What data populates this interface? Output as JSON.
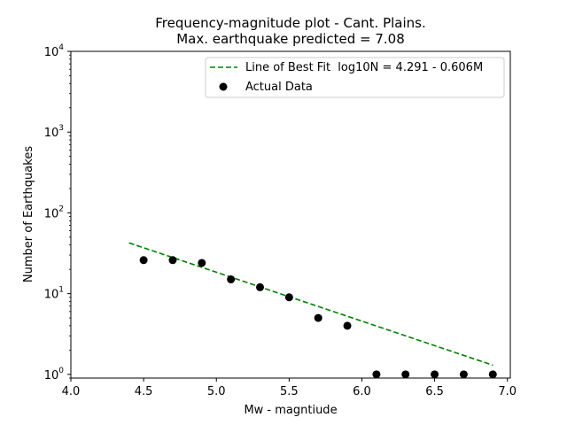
{
  "chart_data": {
    "type": "scatter",
    "title": "Frequency-magnitude plot - Cant. Plains.",
    "subtitle": "Max. earthquake predicted = 7.08",
    "xlabel": "Mw - magntiude",
    "ylabel": "Number of Earthquakes",
    "xlim": [
      4.0,
      7.02
    ],
    "ylim": [
      0.9,
      10000
    ],
    "yscale": "log",
    "x_ticks": [
      "4.0",
      "4.5",
      "5.0",
      "5.5",
      "6.0",
      "6.5",
      "7.0"
    ],
    "y_ticks": [
      {
        "base": "10",
        "exp": "0"
      },
      {
        "base": "10",
        "exp": "1"
      },
      {
        "base": "10",
        "exp": "2"
      },
      {
        "base": "10",
        "exp": "3"
      },
      {
        "base": "10",
        "exp": "4"
      }
    ],
    "grid": false,
    "legend_position": "top-right",
    "series": [
      {
        "name": "Line of Best Fit  log10N = 4.291 - 0.606M",
        "kind": "line",
        "style": "dashed",
        "color": "#008000",
        "x": [
          4.4,
          6.9
        ],
        "y": [
          42.5,
          1.3
        ]
      },
      {
        "name": "Actual Data",
        "kind": "scatter",
        "color": "#000000",
        "x": [
          4.5,
          4.7,
          4.9,
          5.1,
          5.3,
          5.5,
          5.7,
          5.9,
          6.1,
          6.3,
          6.5,
          6.7,
          6.9
        ],
        "y": [
          26,
          26,
          24,
          15,
          12,
          9,
          5,
          4,
          1,
          1,
          1,
          1,
          1
        ]
      }
    ]
  }
}
